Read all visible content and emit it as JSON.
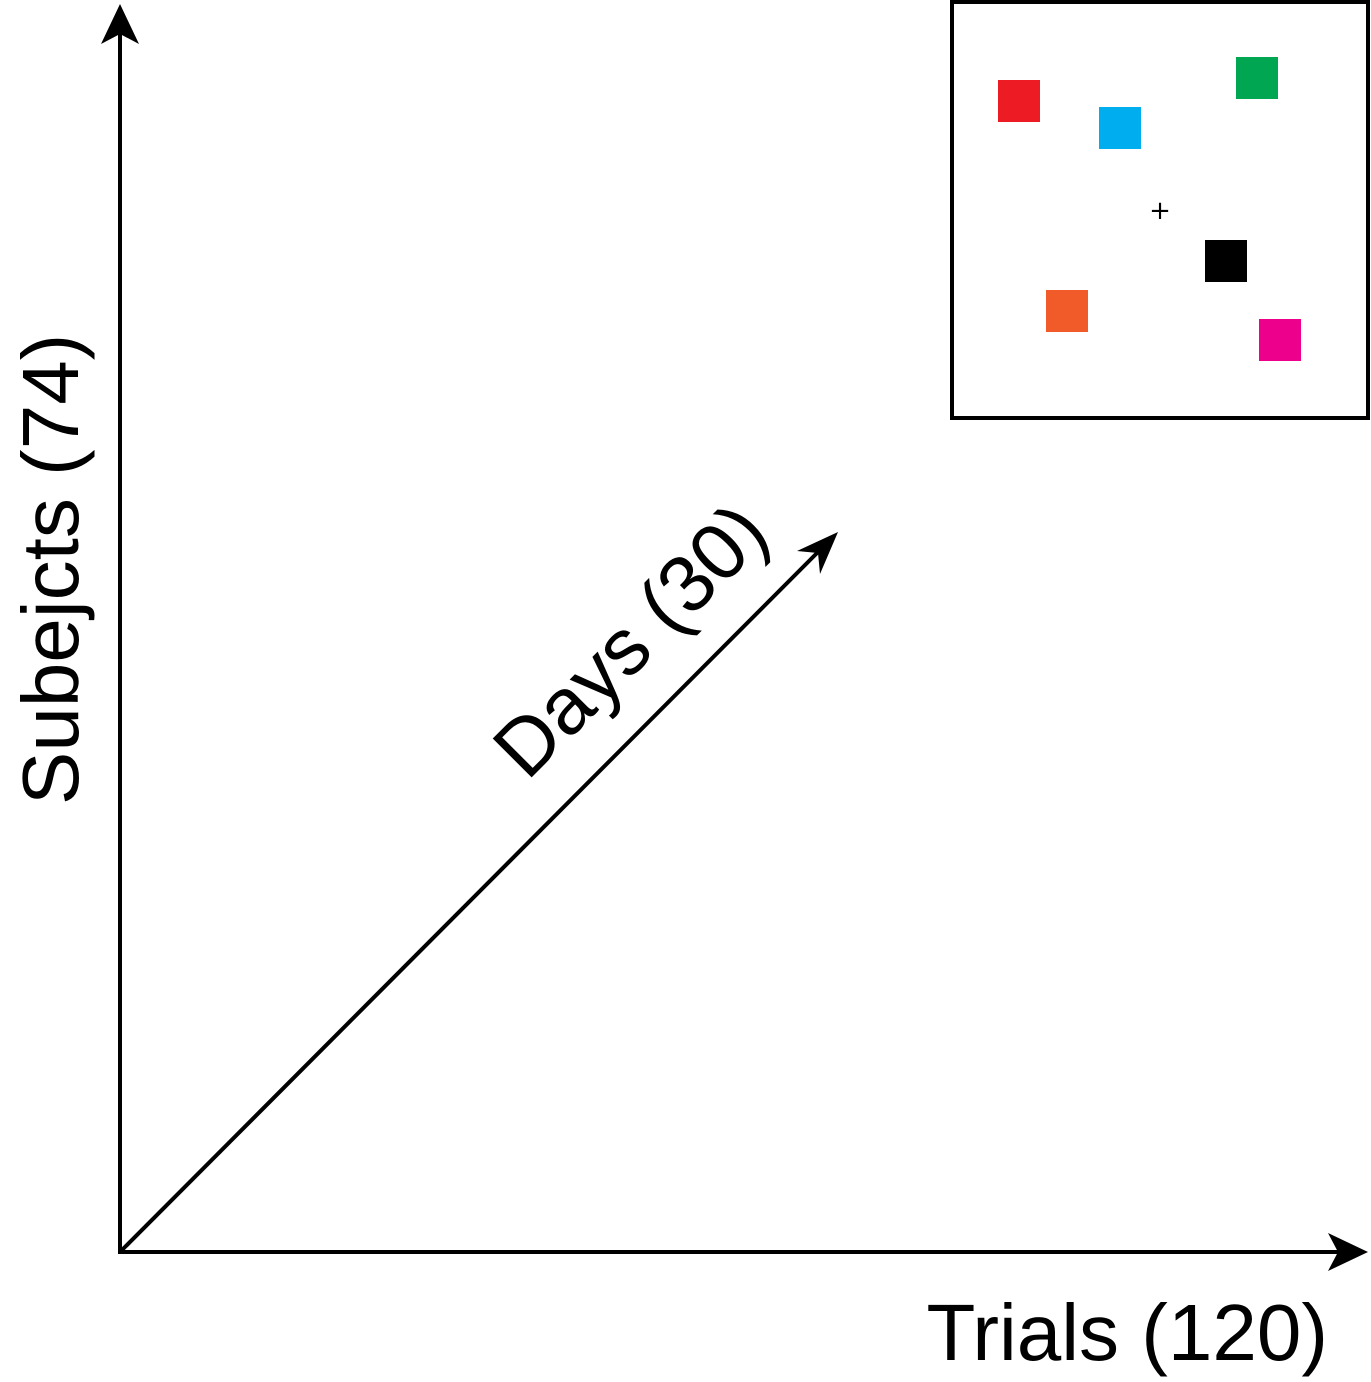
{
  "axes": {
    "vertical_label": "Subejcts (74)",
    "horizontal_label": "Trials (120)",
    "diagonal_label": "Days (30)"
  },
  "stimulus_panel": {
    "fixation_symbol": "+",
    "squares": [
      {
        "name": "red-square",
        "color": "#ED1C24"
      },
      {
        "name": "blue-square",
        "color": "#00AEEF"
      },
      {
        "name": "green-square",
        "color": "#00A651"
      },
      {
        "name": "black-square",
        "color": "#000000"
      },
      {
        "name": "orange-square",
        "color": "#F15A29"
      },
      {
        "name": "magenta-square",
        "color": "#EC008C"
      }
    ]
  }
}
